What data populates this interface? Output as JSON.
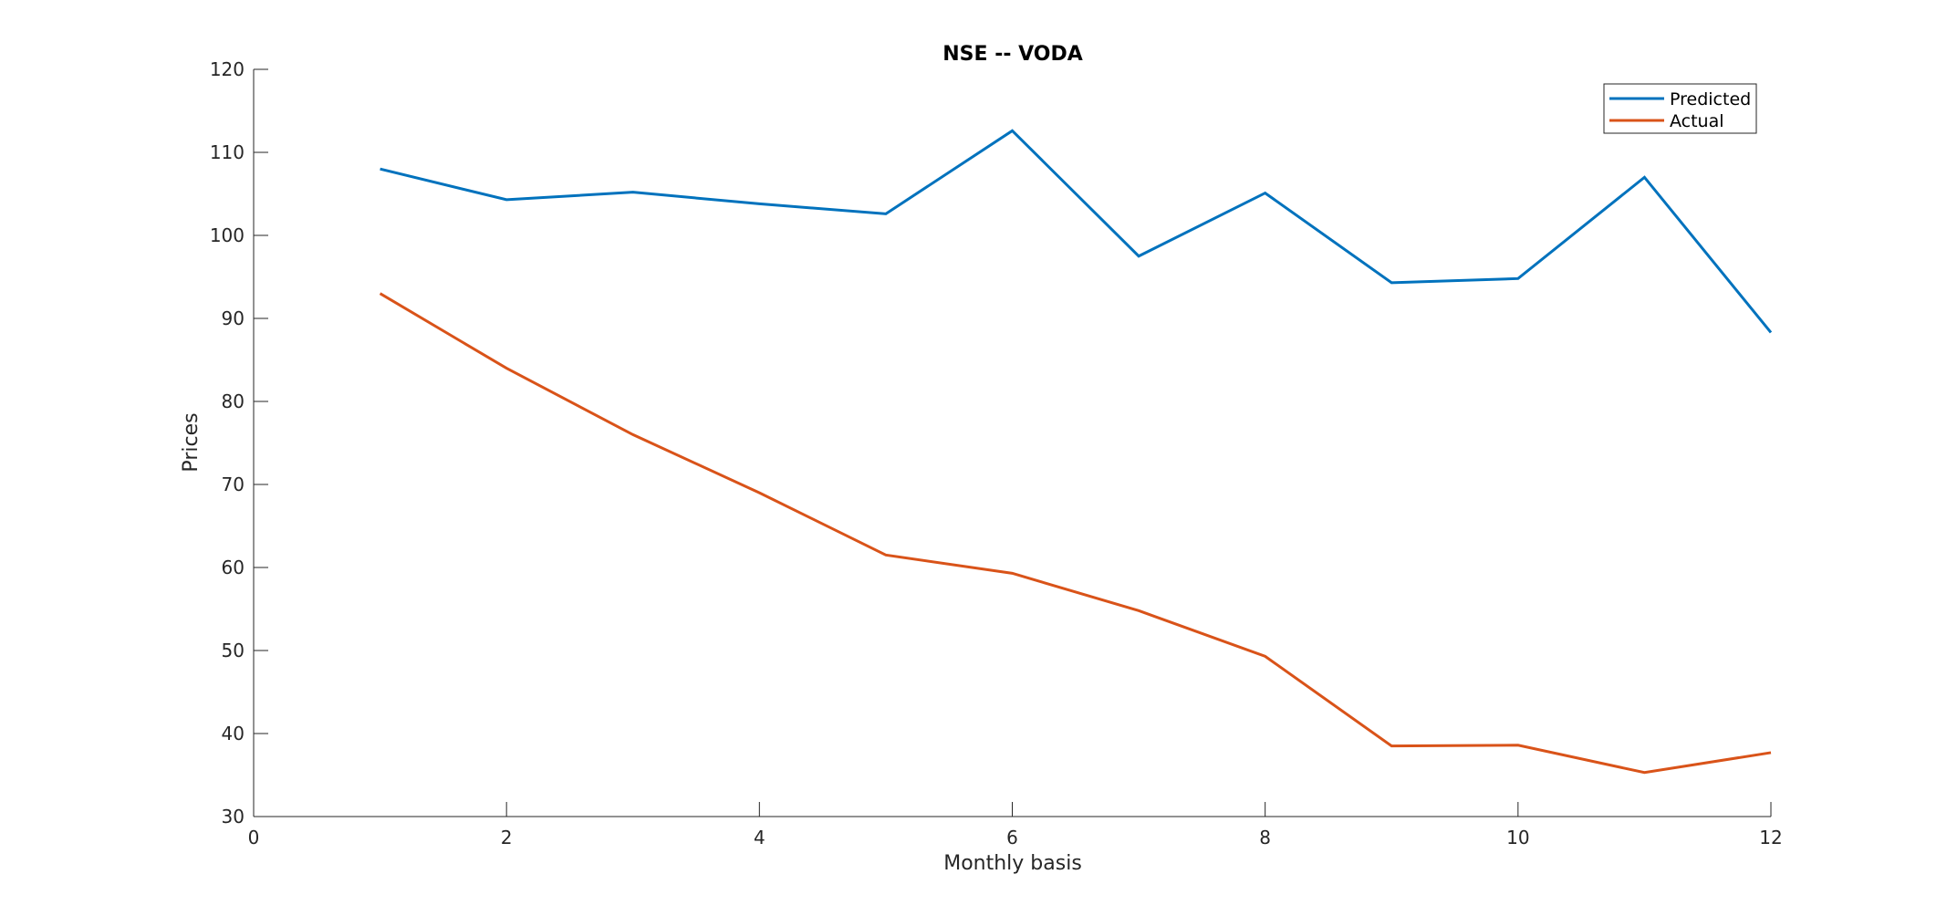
{
  "chart_data": {
    "type": "line",
    "title": "NSE -- VODA",
    "xlabel": "Monthly basis",
    "ylabel": "Prices",
    "xlim": [
      0,
      12
    ],
    "ylim": [
      30,
      120
    ],
    "x_ticks": [
      0,
      2,
      4,
      6,
      8,
      10,
      12
    ],
    "y_ticks": [
      30,
      40,
      50,
      60,
      70,
      80,
      90,
      100,
      110,
      120
    ],
    "x_tick_labels": [
      "0",
      "2",
      "4",
      "6",
      "8",
      "10",
      "12"
    ],
    "y_tick_labels": [
      "30",
      "40",
      "50",
      "60",
      "70",
      "80",
      "90",
      "100",
      "110",
      "120"
    ],
    "grid": false,
    "legend_position": "top-right",
    "series": [
      {
        "name": "Predicted",
        "color": "#0072BD",
        "x": [
          1,
          2,
          3,
          4,
          5,
          6,
          7,
          8,
          9,
          10,
          11,
          12
        ],
        "y": [
          108.0,
          104.3,
          105.2,
          103.8,
          102.6,
          112.6,
          97.5,
          105.1,
          94.3,
          94.8,
          107.0,
          88.3
        ]
      },
      {
        "name": "Actual",
        "color": "#D95319",
        "x": [
          1,
          2,
          3,
          4,
          5,
          6,
          7,
          8,
          9,
          10,
          11,
          12
        ],
        "y": [
          93.0,
          84.0,
          76.0,
          69.0,
          61.5,
          59.3,
          54.8,
          49.3,
          38.5,
          38.6,
          35.3,
          37.7
        ]
      }
    ]
  }
}
